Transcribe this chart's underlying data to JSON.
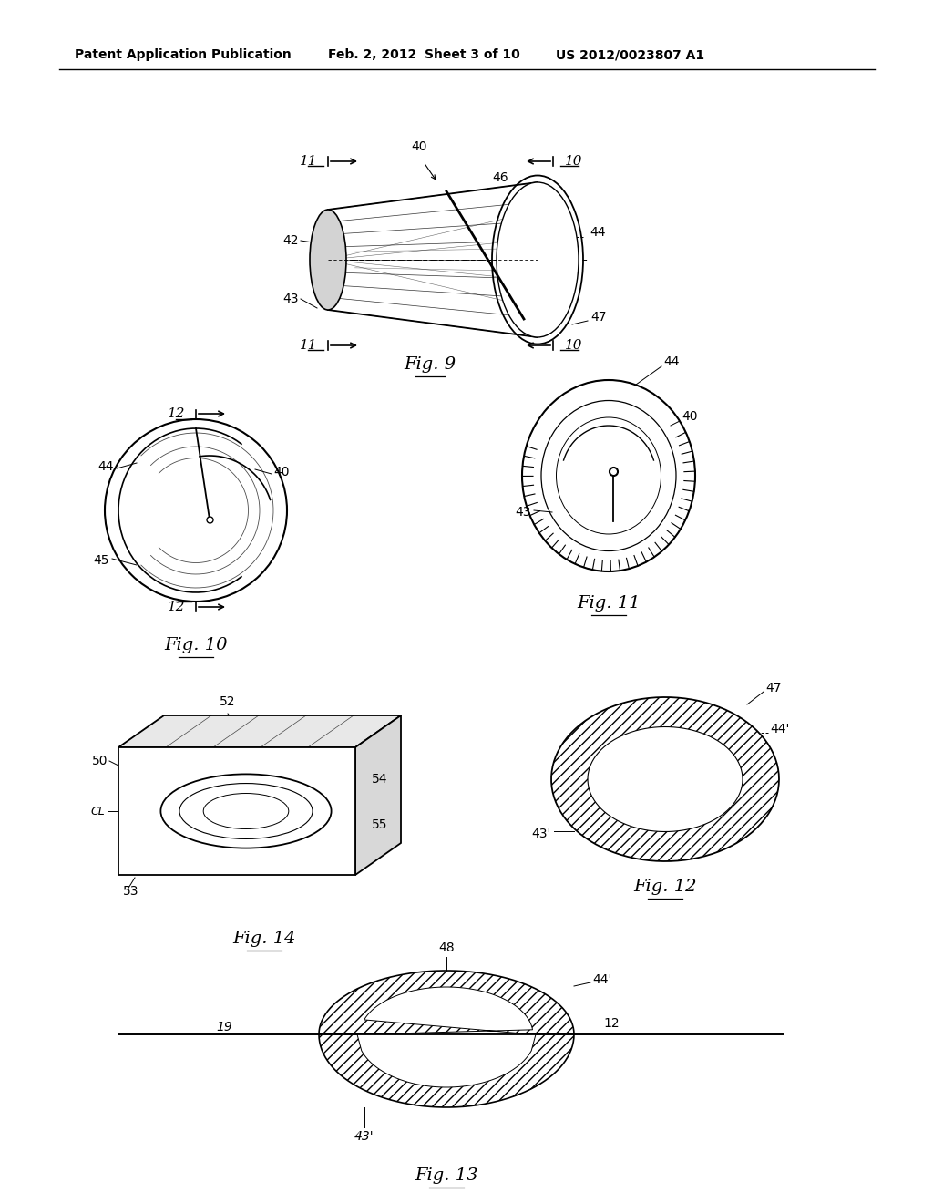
{
  "bg_color": "#ffffff",
  "header_text": "Patent Application Publication",
  "header_date": "Feb. 2, 2012",
  "header_sheet": "Sheet 3 of 10",
  "header_patent": "US 2012/0023807 A1"
}
